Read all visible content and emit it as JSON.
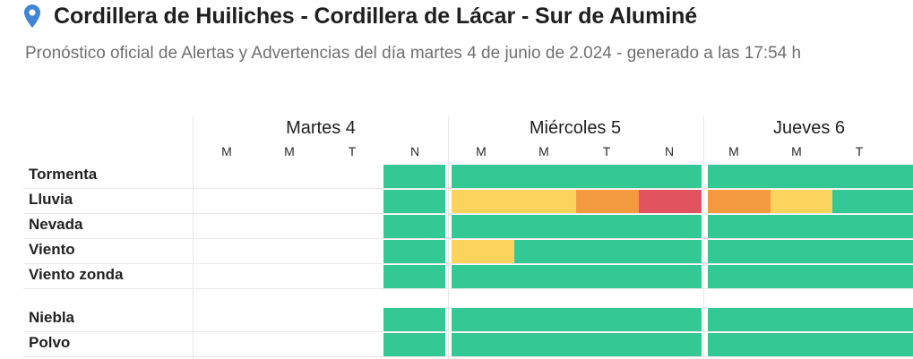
{
  "location": {
    "icon": "map-pin-icon",
    "title": "Cordillera de Huiliches - Cordillera de Lácar - Sur de Aluminé"
  },
  "subtitle": "Pronóstico oficial de Alertas y Advertencias del día martes 4 de junio de 2.024 - generado a las 17:54 h",
  "legend_colors": {
    "none": "#34c895",
    "yellow": "#fcd35c",
    "orange": "#f49a3e",
    "red": "#e1535f"
  },
  "days": [
    {
      "label": "Martes 4",
      "periods": [
        "M",
        "M",
        "T",
        "N"
      ]
    },
    {
      "label": "Miércoles 5",
      "periods": [
        "M",
        "M",
        "T",
        "N"
      ]
    },
    {
      "label": "Jueves 6",
      "periods": [
        "M",
        "M",
        "T"
      ]
    }
  ],
  "phenomena": [
    {
      "name": "Tormenta",
      "levels": [
        "",
        "",
        "",
        "none",
        "none",
        "none",
        "none",
        "none",
        "none",
        "none",
        "none"
      ]
    },
    {
      "name": "Lluvia",
      "levels": [
        "",
        "",
        "",
        "none",
        "yellow",
        "yellow",
        "orange",
        "red",
        "orange",
        "yellow",
        "none"
      ]
    },
    {
      "name": "Nevada",
      "levels": [
        "",
        "",
        "",
        "none",
        "none",
        "none",
        "none",
        "none",
        "none",
        "none",
        "none"
      ]
    },
    {
      "name": "Viento",
      "levels": [
        "",
        "",
        "",
        "none",
        "yellow",
        "none",
        "none",
        "none",
        "none",
        "none",
        "none"
      ]
    },
    {
      "name": "Viento zonda",
      "levels": [
        "",
        "",
        "",
        "none",
        "none",
        "none",
        "none",
        "none",
        "none",
        "none",
        "none"
      ]
    },
    {
      "name": "Niebla",
      "levels": [
        "",
        "",
        "",
        "none",
        "none",
        "none",
        "none",
        "none",
        "none",
        "none",
        "none"
      ]
    },
    {
      "name": "Polvo",
      "levels": [
        "",
        "",
        "",
        "none",
        "none",
        "none",
        "none",
        "none",
        "none",
        "none",
        "none"
      ]
    }
  ]
}
